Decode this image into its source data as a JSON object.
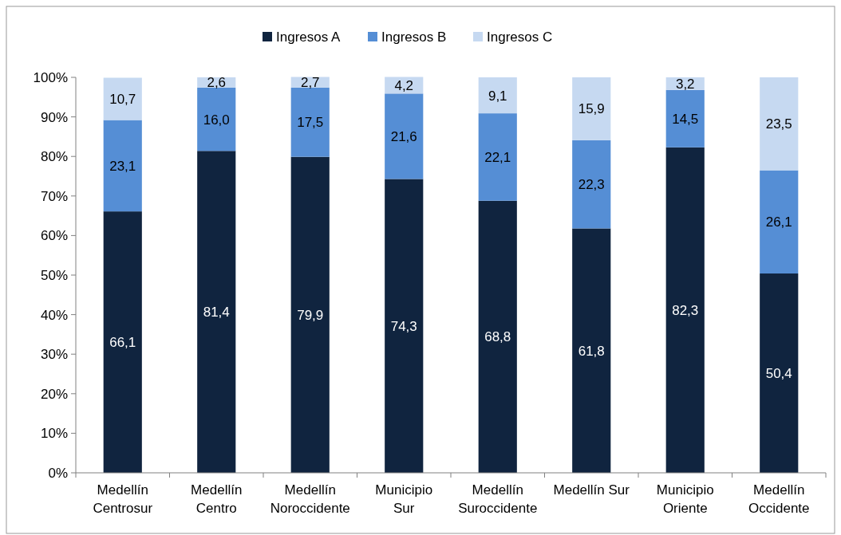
{
  "chart_data": {
    "type": "bar",
    "stacked": true,
    "categories": [
      "Medellín Centrosur",
      "Medellín Centro",
      "Medellín Noroccidente",
      "Municipio Sur",
      "Medellín Suroccidente",
      "Medellín Sur",
      "Municipio Oriente",
      "Medellín Occidente"
    ],
    "series": [
      {
        "name": "Ingresos A",
        "color": "#10243f",
        "values": [
          66.1,
          81.4,
          79.9,
          74.3,
          68.8,
          61.8,
          82.3,
          50.4
        ],
        "value_labels": [
          "66,1",
          "81,4",
          "79,9",
          "74,3",
          "68,8",
          "61,8",
          "82,3",
          "50,4"
        ]
      },
      {
        "name": "Ingresos B",
        "color": "#558ed5",
        "values": [
          23.1,
          16.0,
          17.5,
          21.6,
          22.1,
          22.3,
          14.5,
          26.1
        ],
        "value_labels": [
          "23,1",
          "16,0",
          "17,5",
          "21,6",
          "22,1",
          "22,3",
          "14,5",
          "26,1"
        ]
      },
      {
        "name": "Ingresos C",
        "color": "#c6d9f1",
        "values": [
          10.7,
          2.6,
          2.7,
          4.2,
          9.1,
          15.9,
          3.2,
          23.5
        ],
        "value_labels": [
          "10,7",
          "2,6",
          "2,7",
          "4,2",
          "9,1",
          "15,9",
          "3,2",
          "23,5"
        ]
      }
    ],
    "ylim": [
      0,
      100
    ],
    "yticks": [
      {
        "value": 0,
        "label": "0%"
      },
      {
        "value": 10,
        "label": "10%"
      },
      {
        "value": 20,
        "label": "20%"
      },
      {
        "value": 30,
        "label": "30%"
      },
      {
        "value": 40,
        "label": "40%"
      },
      {
        "value": 50,
        "label": "50%"
      },
      {
        "value": 60,
        "label": "60%"
      },
      {
        "value": 70,
        "label": "70%"
      },
      {
        "value": 80,
        "label": "80%"
      },
      {
        "value": 90,
        "label": "90%"
      },
      {
        "value": 100,
        "label": "100%"
      }
    ],
    "legend": "top",
    "grid": false
  }
}
